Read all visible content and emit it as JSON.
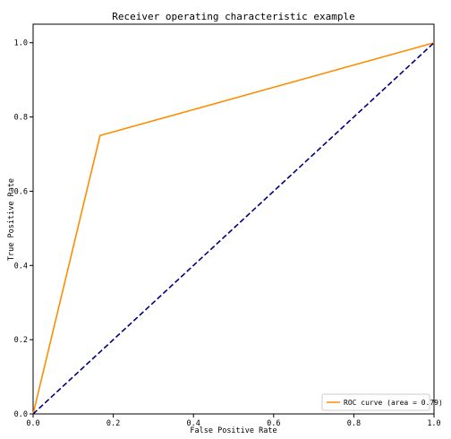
{
  "chart_data": {
    "type": "line",
    "title": "Receiver operating characteristic example",
    "xlabel": "False Positive Rate",
    "ylabel": "True Positive Rate",
    "xlim": [
      0.0,
      1.0
    ],
    "ylim": [
      0.0,
      1.05
    ],
    "x_ticks": [
      0.0,
      0.2,
      0.4,
      0.6,
      0.8,
      1.0
    ],
    "y_ticks": [
      0.0,
      0.2,
      0.4,
      0.6,
      0.8,
      1.0
    ],
    "x_tick_labels": [
      "0.0",
      "0.2",
      "0.4",
      "0.6",
      "0.8",
      "1.0"
    ],
    "y_tick_labels": [
      "0.0",
      "0.2",
      "0.4",
      "0.6",
      "0.8",
      "1.0"
    ],
    "grid": false,
    "legend_position": "lower-right",
    "series": [
      {
        "name": "ROC curve (area = 0.79)",
        "color": "#ff8c00",
        "style": "solid",
        "x": [
          0.0,
          0.167,
          1.0
        ],
        "y": [
          0.0,
          0.75,
          1.0
        ]
      },
      {
        "color": "#000080",
        "style": "dashed",
        "x": [
          0.0,
          1.0
        ],
        "y": [
          0.0,
          1.0
        ]
      }
    ]
  }
}
